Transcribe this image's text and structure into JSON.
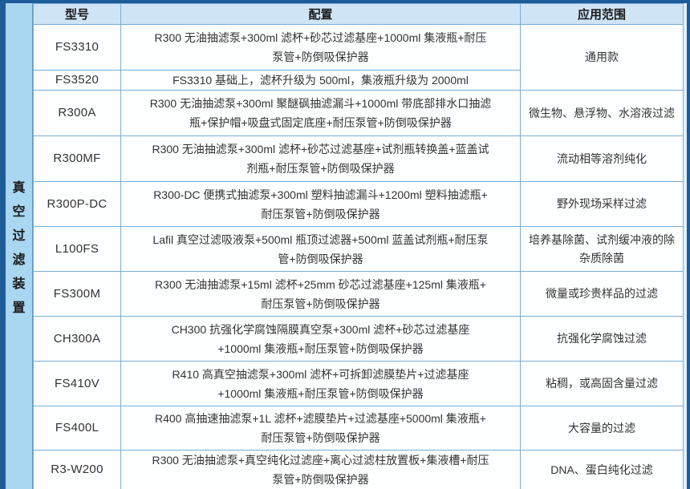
{
  "colors": {
    "frame_navy": "#1d5b99",
    "group_label_bg": "#a9d6f1",
    "header_bg": "#cfe4f5",
    "cell_bg": "#fdfeff",
    "grid_border": "#79aed6"
  },
  "group_label": "真空过滤装置",
  "table": {
    "headers": {
      "model": "型号",
      "config": "配置",
      "application": "应用范围"
    },
    "rows": [
      {
        "model": "FS3310",
        "config": "R300 无油抽滤泵+300ml 滤杯+砂芯过滤基座+1000ml 集液瓶+耐压\n泵管+防倒吸保护器",
        "application": "通用款",
        "app_rowspan": 2
      },
      {
        "model": "FS3520",
        "config": "FS3310 基础上，滤杯升级为 500ml，集液瓶升级为 2000ml"
      },
      {
        "model": "R300A",
        "config": "R300 无油抽滤泵+300ml 聚醚砜抽滤漏斗+1000ml 带底部排水口抽滤\n瓶+保护帽+吸盘式固定底座+耐压泵管+防倒吸保护器",
        "application": "微生物、悬浮物、水溶液过滤"
      },
      {
        "model": "R300MF",
        "config": "R300 无油抽滤泵+300ml 滤杯+砂芯过滤基座+试剂瓶转换盖+蓝盖试\n剂瓶+耐压泵管+防倒吸保护器",
        "application": "流动相等溶剂纯化"
      },
      {
        "model": "R300P-DC",
        "config": "R300-DC 便携式抽滤泵+300ml 塑料抽滤漏斗+1200ml 塑料抽滤瓶+\n耐压泵管+防倒吸保护器",
        "application": "野外现场采样过滤"
      },
      {
        "model": "L100FS",
        "config": "Lafil 真空过滤吸液泵+500ml 瓶顶过滤器+500ml 蓝盖试剂瓶+耐压泵\n管+防倒吸保护器",
        "application": "培养基除菌、试剂缓冲液的除杂质除菌"
      },
      {
        "model": "FS300M",
        "config": "R300 无油抽滤泵+15ml 滤杯+25mm 砂芯过滤基座+125ml 集液瓶+\n耐压泵管+防倒吸保护器",
        "application": "微量或珍贵样品的过滤"
      },
      {
        "model": "CH300A",
        "config": "CH300 抗强化学腐蚀隔膜真空泵+300ml 滤杯+砂芯过滤基座\n+1000ml 集液瓶+耐压泵管+防倒吸保护器",
        "application": "抗强化学腐蚀过滤"
      },
      {
        "model": "FS410V",
        "config": "R410 高真空抽滤泵+300ml 滤杯+可拆卸滤膜垫片+过滤基座\n+1000ml 集液瓶+耐压泵管+防倒吸保护器",
        "application": "粘稠，或高固含量过滤"
      },
      {
        "model": "FS400L",
        "config": "R400 高抽速抽滤泵+1L 滤杯+滤膜垫片+过滤基座+5000ml 集液瓶+\n耐压泵管+防倒吸保护器",
        "application": "大容量的过滤"
      },
      {
        "model": "R3-W200",
        "config": "R300 无油抽滤泵+真空纯化过滤座+离心过滤柱放置板+集液槽+耐压\n泵管+防倒吸保护器",
        "application": "DNA、蛋白纯化过滤"
      }
    ]
  }
}
